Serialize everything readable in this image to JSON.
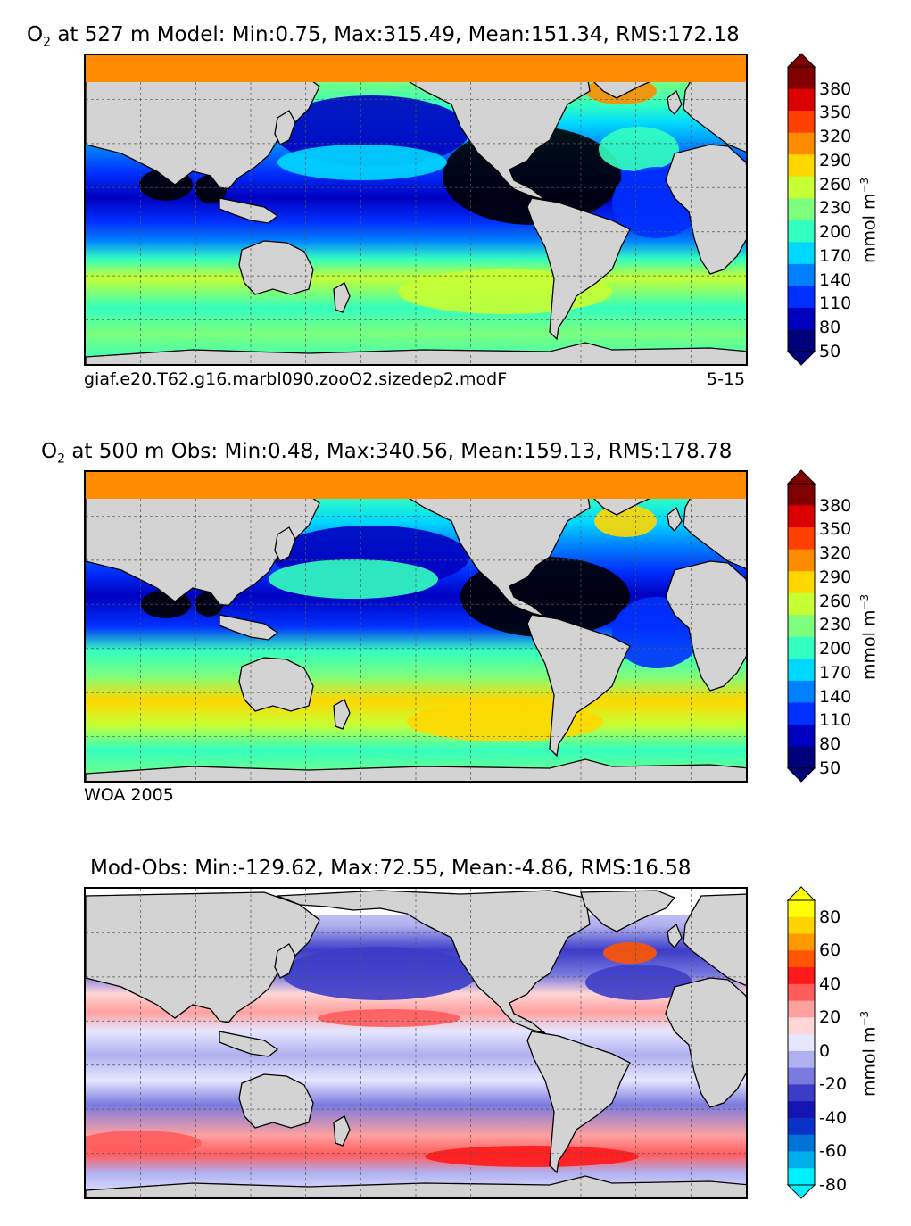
{
  "panels": [
    {
      "id": "model",
      "title_species": "O",
      "title_sub": "2",
      "title_rest": " at 527 m Model: Min:0.75, Max:315.49, Mean:151.34, RMS:172.18",
      "caption_left": "giaf.e20.T62.g16.marbl090.zooO2.sizedep2.modF",
      "caption_right": "5-15",
      "colorbar": {
        "ticks": [
          "380",
          "350",
          "320",
          "290",
          "260",
          "230",
          "200",
          "170",
          "140",
          "110",
          "80",
          "50"
        ],
        "colors": [
          "#800000",
          "#dd0000",
          "#ff4000",
          "#ff8c00",
          "#ffd700",
          "#c6ff33",
          "#7dff7d",
          "#33ffbf",
          "#00d9ff",
          "#0080ff",
          "#0030ff",
          "#0000c0",
          "#00007a"
        ],
        "unit": "mmol m",
        "unit_exp": "−3"
      }
    },
    {
      "id": "obs",
      "title_species": "O",
      "title_sub": "2",
      "title_rest": " at 500 m Obs: Min:0.48, Max:340.56, Mean:159.13, RMS:178.78",
      "caption_left": "WOA 2005",
      "caption_right": "",
      "colorbar": {
        "ticks": [
          "380",
          "350",
          "320",
          "290",
          "260",
          "230",
          "200",
          "170",
          "140",
          "110",
          "80",
          "50"
        ],
        "colors": [
          "#800000",
          "#dd0000",
          "#ff4000",
          "#ff8c00",
          "#ffd700",
          "#c6ff33",
          "#7dff7d",
          "#33ffbf",
          "#00d9ff",
          "#0080ff",
          "#0030ff",
          "#0000c0",
          "#00007a"
        ],
        "unit": "mmol m",
        "unit_exp": "−3"
      }
    },
    {
      "id": "diff",
      "title_species": "",
      "title_sub": "",
      "title_rest": "Mod-Obs: Min:-129.62, Max:72.55, Mean:-4.86, RMS:16.58",
      "caption_left": "",
      "caption_right": "",
      "colorbar": {
        "ticks": [
          "80",
          "60",
          "40",
          "20",
          "0",
          "-20",
          "-40",
          "-60",
          "-80"
        ],
        "colors": [
          "#ffff00",
          "#ffd400",
          "#ff9900",
          "#ff5500",
          "#ff1a1a",
          "#ff5c5c",
          "#ffa0a0",
          "#ffd6d6",
          "#e6e6ff",
          "#b0b0f0",
          "#7a7ae0",
          "#3c3cc8",
          "#1414b4",
          "#0a32c8",
          "#0073d9",
          "#00b0ec",
          "#00f0ff"
        ],
        "unit": "mmol m",
        "unit_exp": "−3"
      }
    }
  ]
}
